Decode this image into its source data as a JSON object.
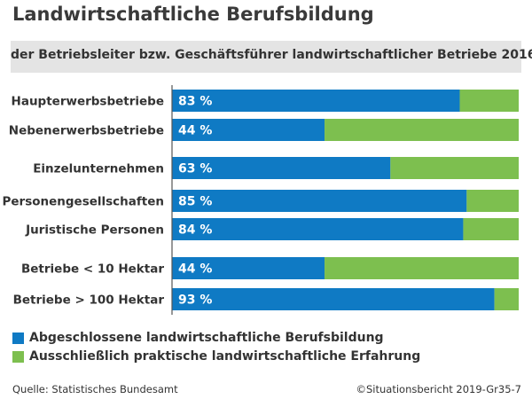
{
  "title": "Landwirtschaftliche Berufsbildung",
  "subtitle": "der Betriebsleiter bzw. Geschäftsführer landwirtschaftlicher Betriebe 2016",
  "colors": {
    "blue": "#0f7ac4",
    "green": "#7dbf4f",
    "band": "#e4e4e4"
  },
  "chart_data": {
    "type": "bar",
    "orientation": "horizontal",
    "stacked": true,
    "categories": [
      "Haupterwerbsbetriebe",
      "Nebenerwerbsbetriebe",
      "Einzelunternehmen",
      "Personengesellschaften",
      "Juristische Personen",
      "Betriebe < 10 Hektar",
      "Betriebe > 100 Hektar"
    ],
    "groups": [
      [
        0,
        1
      ],
      [
        2,
        3,
        4
      ],
      [
        5,
        6
      ]
    ],
    "series": [
      {
        "name": "Abgeschlossene landwirtschaftliche Berufsbildung",
        "values": [
          83,
          44,
          63,
          85,
          84,
          44,
          93
        ],
        "labels": [
          "83 %",
          "44 %",
          "63 %",
          "85 %",
          "84 %",
          "44 %",
          "93 %"
        ]
      },
      {
        "name": "Ausschließlich praktische landwirtschaftliche Erfahrung",
        "values": [
          17,
          56,
          37,
          15,
          16,
          56,
          7
        ]
      }
    ],
    "xlim": [
      0,
      100
    ]
  },
  "legend": [
    "Abgeschlossene landwirtschaftliche Berufsbildung",
    "Ausschließlich praktische landwirtschaftliche Erfahrung"
  ],
  "source": "Quelle: Statistisches Bundesamt",
  "credit": "©Situationsbericht 2019-Gr35-7"
}
